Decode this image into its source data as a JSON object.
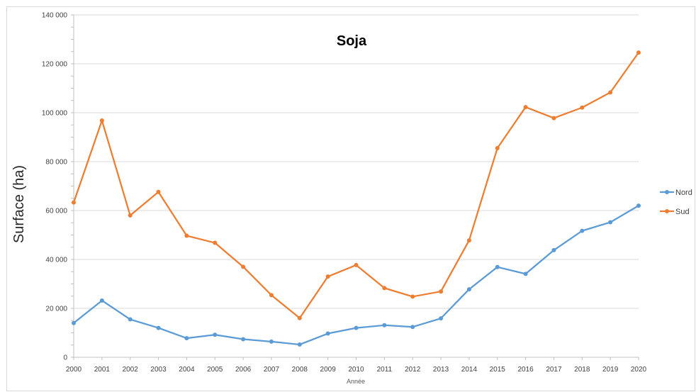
{
  "chart_data": {
    "type": "line",
    "title": "Soja",
    "xlabel": "Année",
    "ylabel": "Surface (ha)",
    "ylim": [
      0,
      140000
    ],
    "yticks": [
      0,
      20000,
      40000,
      60000,
      80000,
      100000,
      120000,
      140000
    ],
    "ytick_labels": [
      "0",
      "20 000",
      "40 000",
      "60 000",
      "80 000",
      "100 000",
      "120 000",
      "140 000"
    ],
    "x": [
      "2000",
      "2001",
      "2002",
      "2003",
      "2004",
      "2005",
      "2006",
      "2007",
      "2008",
      "2009",
      "2010",
      "2011",
      "2012",
      "2013",
      "2014",
      "2015",
      "2016",
      "2017",
      "2018",
      "2019",
      "2020"
    ],
    "grid": "horizontal",
    "legend_position": "right",
    "series": [
      {
        "name": "Nord",
        "color": "#5b9bd5",
        "values": [
          14000,
          23200,
          15500,
          12000,
          7800,
          9200,
          7400,
          6400,
          5200,
          9700,
          12000,
          13100,
          12400,
          15900,
          27800,
          36900,
          34100,
          43800,
          51700,
          55200,
          62000
        ]
      },
      {
        "name": "Sud",
        "color": "#ed7d31",
        "values": [
          63300,
          96800,
          58000,
          67600,
          49700,
          46800,
          37000,
          25400,
          16000,
          33000,
          37700,
          28300,
          24800,
          26900,
          47800,
          85500,
          102300,
          97800,
          102100,
          108300,
          124600
        ]
      }
    ]
  }
}
